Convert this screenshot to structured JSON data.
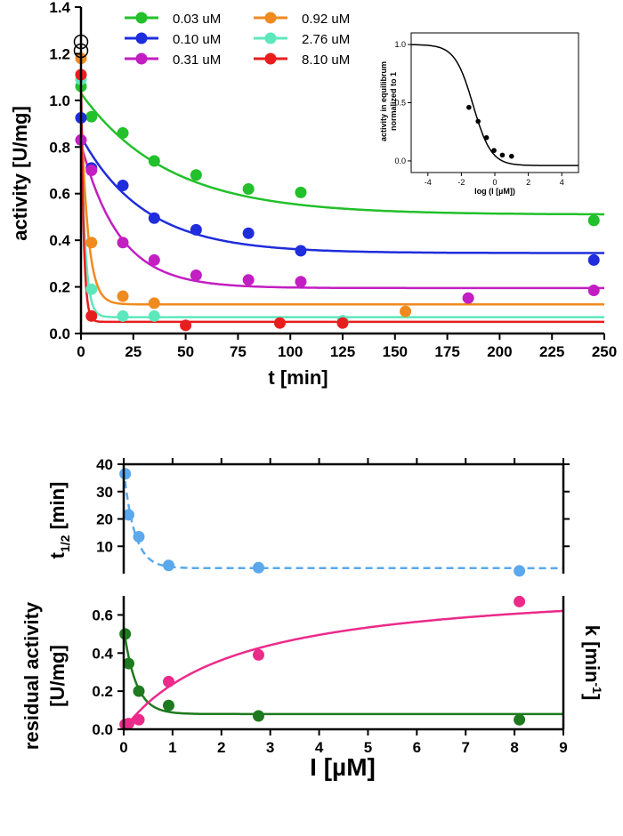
{
  "chart_data": [
    {
      "type": "scatter",
      "id": "top",
      "title": "",
      "xlabel": "t [min]",
      "ylabel": "activity [U/mg]",
      "xlim": [
        0,
        250
      ],
      "ylim": [
        0,
        1.4
      ],
      "xticks": [
        0,
        25,
        50,
        75,
        100,
        125,
        150,
        175,
        200,
        225,
        250
      ],
      "yticks": [
        0.0,
        0.2,
        0.4,
        0.6,
        0.8,
        1.0,
        1.2,
        1.4
      ],
      "legend": "top-left, two columns",
      "series": [
        {
          "name": "0.03 uM",
          "color": "#22c02a",
          "points": [
            [
              0,
              1.06
            ],
            [
              5,
              0.93
            ],
            [
              20,
              0.86
            ],
            [
              35,
              0.74
            ],
            [
              55,
              0.68
            ],
            [
              80,
              0.62
            ],
            [
              105,
              0.605
            ],
            [
              245,
              0.485
            ]
          ],
          "fit": {
            "a": 0.51,
            "b": 0.52,
            "k": 0.024
          }
        },
        {
          "name": "0.10 uM",
          "color": "#1f2ddc",
          "points": [
            [
              0,
              0.925
            ],
            [
              5,
              0.71
            ],
            [
              20,
              0.635
            ],
            [
              35,
              0.495
            ],
            [
              55,
              0.445
            ],
            [
              80,
              0.43
            ],
            [
              105,
              0.355
            ],
            [
              245,
              0.315
            ]
          ],
          "fit": {
            "a": 0.345,
            "b": 0.5,
            "k": 0.033
          }
        },
        {
          "name": "0.31 uM",
          "color": "#c21ec2",
          "points": [
            [
              0,
              0.83
            ],
            [
              5,
              0.7
            ],
            [
              20,
              0.39
            ],
            [
              35,
              0.315
            ],
            [
              55,
              0.25
            ],
            [
              80,
              0.23
            ],
            [
              105,
              0.222
            ],
            [
              185,
              0.152
            ],
            [
              245,
              0.185
            ]
          ],
          "fit": {
            "a": 0.195,
            "b": 0.62,
            "k": 0.055
          }
        },
        {
          "name": "0.92 uM",
          "color": "#f08a1e",
          "points": [
            [
              0,
              1.18
            ],
            [
              5,
              0.39
            ],
            [
              20,
              0.16
            ],
            [
              35,
              0.13
            ],
            [
              155,
              0.095
            ]
          ],
          "fit": {
            "a": 0.125,
            "b": 0.85,
            "k": 0.3
          }
        },
        {
          "name": "2.76 uM",
          "color": "#5de8bc",
          "points": [
            [
              0,
              1.09
            ],
            [
              5,
              0.19
            ],
            [
              20,
              0.075
            ],
            [
              35,
              0.075
            ],
            [
              125,
              0.055
            ]
          ],
          "fit": {
            "a": 0.07,
            "b": 0.85,
            "k": 0.5
          }
        },
        {
          "name": "8.10 uM",
          "color": "#e81e1e",
          "points": [
            [
              0,
              1.11
            ],
            [
              5,
              0.075
            ],
            [
              50,
              0.035
            ],
            [
              95,
              0.045
            ],
            [
              125,
              0.045
            ]
          ],
          "fit": {
            "a": 0.05,
            "b": 1.05,
            "k": 0.8
          }
        }
      ],
      "open_markers": [
        [
          0,
          1.28
        ],
        [
          0,
          1.24
        ]
      ]
    },
    {
      "type": "scatter",
      "id": "inset",
      "xlabel": "log (I [µM])",
      "ylabel": "activity in equilibrum normalized to 1",
      "ylabel_lines": [
        "activity in equilibrum",
        "normalized to 1"
      ],
      "xlim": [
        -5,
        5
      ],
      "ylim": [
        -0.1,
        1.1
      ],
      "xticks": [
        -4,
        -2,
        0,
        2,
        4
      ],
      "yticks": [
        0.0,
        0.5,
        1.0
      ],
      "points": [
        [
          -1.55,
          0.46
        ],
        [
          -1.0,
          0.34
        ],
        [
          -0.5,
          0.2
        ],
        [
          -0.05,
          0.09
        ],
        [
          0.45,
          0.05
        ],
        [
          1.0,
          0.04
        ]
      ],
      "fit": {
        "bottom": -0.04,
        "top": 1.0,
        "logIC50": -1.3,
        "hill": 0.8
      }
    },
    {
      "type": "scatter",
      "id": "middle",
      "xlabel": "",
      "ylabel": "t1/2 [min]",
      "xlim": [
        0,
        9
      ],
      "ylim": [
        0,
        40
      ],
      "yticks": [
        10,
        20,
        30,
        40
      ],
      "series": [
        {
          "name": "t1/2",
          "color": "#5ba8ec",
          "line_style": "dashed",
          "points": [
            [
              0.03,
              36.5
            ],
            [
              0.1,
              21.5
            ],
            [
              0.31,
              13.5
            ],
            [
              0.92,
              3.0
            ],
            [
              2.76,
              2.2
            ],
            [
              8.1,
              1.0
            ]
          ],
          "fit": {
            "a": 2.0,
            "b": 36.0,
            "k": 4.5
          }
        }
      ]
    },
    {
      "type": "scatter",
      "id": "bottom",
      "xlabel": "I [µM]",
      "ylabel": "residual activity [U/mg]",
      "ylabel_lines": [
        "residual activity",
        "[U/mg]"
      ],
      "y2label": "k [min-1]",
      "xlim": [
        0,
        9
      ],
      "ylim": [
        0,
        0.7
      ],
      "xticks": [
        0,
        1,
        2,
        3,
        4,
        5,
        6,
        7,
        8,
        9
      ],
      "yticks": [
        0.0,
        0.2,
        0.4,
        0.6
      ],
      "series": [
        {
          "name": "residual activity",
          "color": "#1e7a1e",
          "points": [
            [
              0.03,
              0.5
            ],
            [
              0.1,
              0.345
            ],
            [
              0.31,
              0.2
            ],
            [
              0.92,
              0.125
            ],
            [
              2.76,
              0.07
            ],
            [
              8.1,
              0.05
            ]
          ],
          "fit": {
            "a": 0.08,
            "b": 0.45,
            "k": 4.0
          }
        },
        {
          "name": "k",
          "color": "#ec2a8a",
          "points": [
            [
              0.03,
              0.025
            ],
            [
              0.1,
              0.03
            ],
            [
              0.31,
              0.05
            ],
            [
              0.92,
              0.25
            ],
            [
              2.76,
              0.39
            ],
            [
              8.1,
              0.67
            ]
          ],
          "fit": {
            "vmax": 0.78,
            "km": 2.3
          }
        }
      ]
    }
  ],
  "labels": {
    "t_half_main": "t",
    "t_half_sub": "1/2",
    "t_half_unit": " [min]",
    "k_main": "k [min",
    "k_sup": "-1",
    "k_close": "]",
    "x_main": "I [",
    "x_mu": "µ",
    "x_unit": "M]"
  }
}
